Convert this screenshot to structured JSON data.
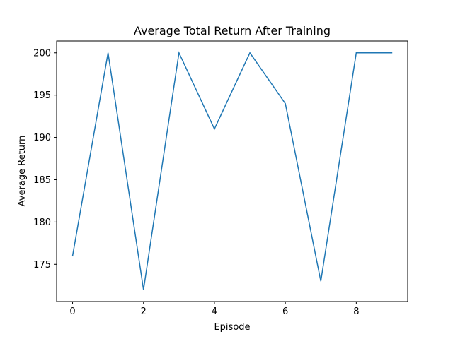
{
  "chart_data": {
    "type": "line",
    "title": "Average Total Return After Training",
    "xlabel": "Episode",
    "ylabel": "Average Return",
    "x": [
      0,
      1,
      2,
      3,
      4,
      5,
      6,
      7,
      8,
      9
    ],
    "series": [
      {
        "values": [
          176,
          200,
          172,
          200,
          191,
          200,
          194,
          173,
          200,
          200
        ],
        "color": "#1f77b4"
      }
    ],
    "xlim": [
      -0.45,
      9.45
    ],
    "ylim": [
      170.6,
      201.4
    ],
    "xticks": [
      0,
      2,
      4,
      6,
      8
    ],
    "xtick_labels": [
      "0",
      "2",
      "4",
      "6",
      "8"
    ],
    "yticks": [
      175,
      180,
      185,
      190,
      195,
      200
    ],
    "ytick_labels": [
      "175",
      "180",
      "185",
      "190",
      "195",
      "200"
    ],
    "grid": false,
    "legend": "none"
  }
}
